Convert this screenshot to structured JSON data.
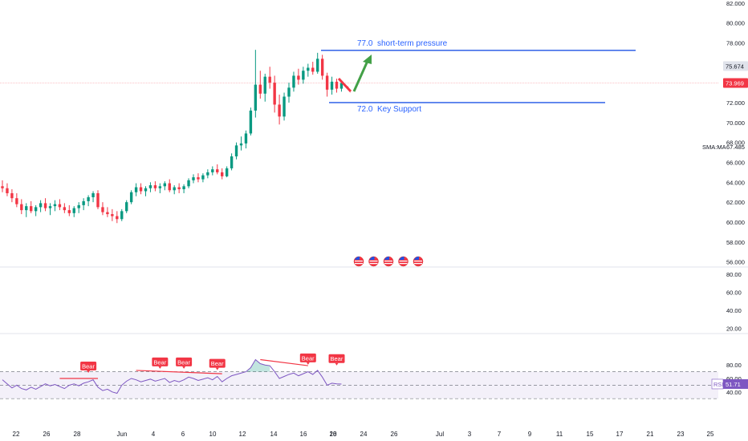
{
  "chart_data": [
    {
      "type": "candlestick",
      "title": "",
      "xlabel": "",
      "ylabel": "",
      "ylim": [
        54.5,
        82.5
      ],
      "y_ticks": [
        "82.000",
        "80.000",
        "78.000",
        "76.000",
        "74.000",
        "72.000",
        "70.000",
        "68.000",
        "66.000",
        "64.000",
        "62.000",
        "60.000",
        "58.000",
        "56.000"
      ],
      "x_ticks": [
        "22",
        "26",
        "28",
        "Jun",
        "4",
        "6",
        "10",
        "12",
        "14",
        "16",
        "18",
        "20",
        "24",
        "26",
        "Jul",
        "3",
        "7",
        "9",
        "11",
        "15",
        "17",
        "21",
        "23",
        "25"
      ],
      "up_color": "#089981",
      "down_color": "#f23645",
      "price_ohlc": [
        [
          63.6,
          64.2,
          63.0,
          63.4
        ],
        [
          63.4,
          63.9,
          62.6,
          62.9
        ],
        [
          62.9,
          63.3,
          62.0,
          62.4
        ],
        [
          62.4,
          62.9,
          61.5,
          61.8
        ],
        [
          61.8,
          62.3,
          60.8,
          61.2
        ],
        [
          61.2,
          61.9,
          60.5,
          61.6
        ],
        [
          61.6,
          62.1,
          60.9,
          61.1
        ],
        [
          61.1,
          61.7,
          60.6,
          61.5
        ],
        [
          61.5,
          62.2,
          61.0,
          61.9
        ],
        [
          61.9,
          62.4,
          61.1,
          61.4
        ],
        [
          61.4,
          61.9,
          60.7,
          61.6
        ],
        [
          61.6,
          62.2,
          61.1,
          61.8
        ],
        [
          61.8,
          62.3,
          61.2,
          61.5
        ],
        [
          61.5,
          61.9,
          60.9,
          61.2
        ],
        [
          61.2,
          61.7,
          60.6,
          60.9
        ],
        [
          60.9,
          61.6,
          60.5,
          61.4
        ],
        [
          61.4,
          62.0,
          60.9,
          61.7
        ],
        [
          61.7,
          62.4,
          61.2,
          62.1
        ],
        [
          62.1,
          62.7,
          61.6,
          62.5
        ],
        [
          62.5,
          63.1,
          62.0,
          62.9
        ],
        [
          62.9,
          63.2,
          61.3,
          61.5
        ],
        [
          61.5,
          62.0,
          60.7,
          61.0
        ],
        [
          61.0,
          61.5,
          60.5,
          60.8
        ],
        [
          60.8,
          61.3,
          60.1,
          60.6
        ],
        [
          60.6,
          61.1,
          59.9,
          60.3
        ],
        [
          60.3,
          61.3,
          60.1,
          61.1
        ],
        [
          61.1,
          62.2,
          60.9,
          62.0
        ],
        [
          62.0,
          63.2,
          61.8,
          63.0
        ],
        [
          63.0,
          63.9,
          62.6,
          63.5
        ],
        [
          63.5,
          63.9,
          62.8,
          63.1
        ],
        [
          63.1,
          63.6,
          62.6,
          63.4
        ],
        [
          63.4,
          64.0,
          63.0,
          63.7
        ],
        [
          63.7,
          64.1,
          63.1,
          63.4
        ],
        [
          63.4,
          63.9,
          62.9,
          63.6
        ],
        [
          63.6,
          64.1,
          63.2,
          63.9
        ],
        [
          63.9,
          64.3,
          63.0,
          63.2
        ],
        [
          63.2,
          63.7,
          62.8,
          63.5
        ],
        [
          63.5,
          63.9,
          62.9,
          63.3
        ],
        [
          63.3,
          63.8,
          62.9,
          63.6
        ],
        [
          63.6,
          64.4,
          63.4,
          64.2
        ],
        [
          64.2,
          64.8,
          63.9,
          64.5
        ],
        [
          64.5,
          64.9,
          64.0,
          64.3
        ],
        [
          64.3,
          64.9,
          64.0,
          64.7
        ],
        [
          64.7,
          65.3,
          64.4,
          65.0
        ],
        [
          65.0,
          65.6,
          64.7,
          65.3
        ],
        [
          65.3,
          65.8,
          64.8,
          65.0
        ],
        [
          65.0,
          65.4,
          64.3,
          64.6
        ],
        [
          64.6,
          65.6,
          64.5,
          65.4
        ],
        [
          65.4,
          66.9,
          65.2,
          66.6
        ],
        [
          66.6,
          68.0,
          66.3,
          67.7
        ],
        [
          67.7,
          68.6,
          67.2,
          67.9
        ],
        [
          67.9,
          69.2,
          67.4,
          68.9
        ],
        [
          68.9,
          71.5,
          68.7,
          71.2
        ],
        [
          71.2,
          77.3,
          70.5,
          73.8
        ],
        [
          73.8,
          75.2,
          72.4,
          72.9
        ],
        [
          72.9,
          74.9,
          72.1,
          74.6
        ],
        [
          74.6,
          75.6,
          73.4,
          74.0
        ],
        [
          74.0,
          74.7,
          71.0,
          71.8
        ],
        [
          71.8,
          72.8,
          69.8,
          70.6
        ],
        [
          70.6,
          73.0,
          70.2,
          72.6
        ],
        [
          72.6,
          74.0,
          72.0,
          73.5
        ],
        [
          73.5,
          75.1,
          73.1,
          74.7
        ],
        [
          74.7,
          75.4,
          73.8,
          74.3
        ],
        [
          74.3,
          75.6,
          73.9,
          75.2
        ],
        [
          75.2,
          75.9,
          74.6,
          75.5
        ],
        [
          75.5,
          76.1,
          74.8,
          75.1
        ],
        [
          75.1,
          77.0,
          74.9,
          76.4
        ],
        [
          76.4,
          76.8,
          74.3,
          74.7
        ],
        [
          74.7,
          75.0,
          72.6,
          73.3
        ],
        [
          73.3,
          74.6,
          72.8,
          74.1
        ],
        [
          74.1,
          74.4,
          73.0,
          73.4
        ],
        [
          73.4,
          74.2,
          73.1,
          73.97
        ]
      ],
      "last_price": "73.969",
      "sma_label": "SMA:MA",
      "sma_value": "67.485",
      "upper_tag": "75.674",
      "upper_tag_value": 75.674,
      "resistance": {
        "value": 77.0,
        "price_text": "77.0",
        "label": "short-term pressure"
      },
      "support": {
        "value": 72.0,
        "price_text": "72.0",
        "label": "Key Support"
      },
      "line_color": "#1e53e5",
      "projection_up_color": "#43a047",
      "projection_down_color": "#f23645"
    },
    {
      "type": "line",
      "title": "",
      "series": [
        {
          "name": "RSI",
          "color": "#7e57c2"
        }
      ],
      "ylim": [
        30,
        92
      ],
      "overbought": 70,
      "midline": 50,
      "oversold": 30,
      "y_ticks": [
        "80.00",
        "60.00",
        "40.00"
      ],
      "upper_ticks": [
        "80.00",
        "60.00",
        "40.00",
        "20.00"
      ],
      "rsi_value": "51.71",
      "rsi_label": "RSI",
      "values": [
        58,
        52,
        46,
        50,
        45,
        43,
        47,
        44,
        48,
        52,
        49,
        51,
        48,
        45,
        50,
        52,
        49,
        53,
        55,
        58,
        47,
        42,
        44,
        40,
        38,
        50,
        56,
        60,
        58,
        55,
        57,
        59,
        56,
        58,
        60,
        54,
        57,
        55,
        58,
        62,
        60,
        57,
        59,
        61,
        58,
        63,
        55,
        60,
        64,
        66,
        68,
        70,
        76,
        88,
        82,
        80,
        79,
        70,
        60,
        63,
        66,
        68,
        64,
        67,
        70,
        66,
        72,
        62,
        50,
        53,
        52,
        51.71
      ],
      "bear_label": "Bear",
      "bear_tags": [
        {
          "text": "Bear",
          "x_index": 18,
          "value": 66
        },
        {
          "text": "Bear",
          "x_index": 33,
          "value": 72
        },
        {
          "text": "Bear",
          "x_index": 38,
          "value": 72
        },
        {
          "text": "Bear",
          "x_index": 45,
          "value": 70
        },
        {
          "text": "Bear",
          "x_index": 64,
          "value": 78
        },
        {
          "text": "Bear",
          "x_index": 70,
          "value": 77
        }
      ],
      "divergence_lines": [
        {
          "from_index": 12,
          "from_value": 60,
          "to_index": 20,
          "to_value": 60
        },
        {
          "from_index": 28,
          "from_value": 72,
          "to_index": 46,
          "to_value": 67
        },
        {
          "from_index": 54,
          "from_value": 88,
          "to_index": 64,
          "to_value": 79
        }
      ]
    }
  ],
  "event_icons": [
    "us-flag-icon",
    "us-flag-icon",
    "us-flag-icon",
    "us-flag-icon",
    "us-flag-icon"
  ]
}
